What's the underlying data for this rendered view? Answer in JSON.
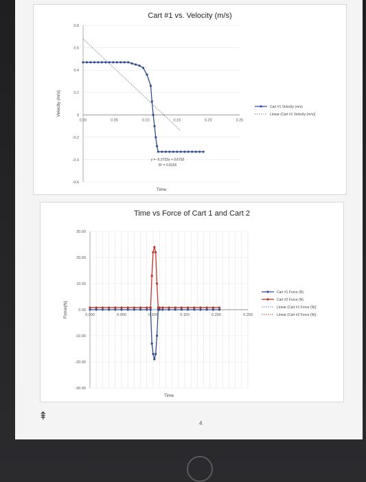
{
  "chart_data": [
    {
      "type": "line",
      "title": "Cart #1 vs. Velocity (m/s)",
      "xlabel": "Time",
      "ylabel": "Velocity (m/s)",
      "xlim": [
        0,
        0.25
      ],
      "ylim": [
        -0.6,
        0.8
      ],
      "x_ticks": [
        "0.00",
        "0.05",
        "0.10",
        "0.15",
        "0.20",
        "0.25"
      ],
      "y_ticks": [
        "0.8",
        "0.6",
        "0.4",
        "0.2",
        "0",
        "-0.2",
        "-0.4",
        "-0.6"
      ],
      "series": [
        {
          "name": "Cart #1 Velocity (m/s)",
          "color": "#2f4e8f",
          "x": [
            0.0,
            0.006,
            0.012,
            0.018,
            0.024,
            0.03,
            0.036,
            0.042,
            0.048,
            0.054,
            0.06,
            0.066,
            0.072,
            0.078,
            0.084,
            0.09,
            0.096,
            0.102,
            0.108,
            0.11,
            0.112,
            0.114,
            0.116,
            0.118,
            0.12,
            0.126,
            0.132,
            0.138,
            0.144,
            0.15,
            0.156,
            0.162,
            0.168,
            0.174,
            0.18,
            0.186,
            0.192
          ],
          "y": [
            0.47,
            0.47,
            0.47,
            0.47,
            0.47,
            0.47,
            0.47,
            0.47,
            0.47,
            0.47,
            0.47,
            0.47,
            0.47,
            0.46,
            0.45,
            0.44,
            0.42,
            0.36,
            0.26,
            0.12,
            0.0,
            -0.1,
            -0.2,
            -0.28,
            -0.33,
            -0.33,
            -0.33,
            -0.33,
            -0.33,
            -0.33,
            -0.33,
            -0.33,
            -0.33,
            -0.33,
            -0.33,
            -0.33,
            -0.33
          ]
        }
      ],
      "trendline": {
        "name": "Linear (Cart #1 Velocity (m/s))",
        "slope": -5.2723,
        "intercept": 0.6792,
        "equation": "y = -5.2723x + 0.6792",
        "r2": "R² = 0.8156"
      },
      "legend": [
        "Cart #1 Velocity (m/s)",
        "Linear (Cart #1 Velocity (m/s))"
      ],
      "legend_position": "right"
    },
    {
      "type": "line",
      "title": "Time vs Force of Cart 1 and Cart 2",
      "xlabel": "Time",
      "ylabel": "Force(N)",
      "xlim": [
        0,
        0.25
      ],
      "ylim": [
        -30,
        30
      ],
      "x_ticks": [
        "0.000",
        "0.050",
        "0.100",
        "0.150",
        "0.200",
        "0.250"
      ],
      "y_ticks": [
        "30.00",
        "20.00",
        "10.00",
        "0.00",
        "-10.00",
        "-20.00",
        "-30.00"
      ],
      "series": [
        {
          "name": "Cart #1 Force (N)",
          "color": "#2f4e8f",
          "x": [
            0.0,
            0.01,
            0.02,
            0.03,
            0.04,
            0.05,
            0.06,
            0.07,
            0.08,
            0.09,
            0.096,
            0.098,
            0.1,
            0.102,
            0.104,
            0.106,
            0.108,
            0.11,
            0.115,
            0.125,
            0.135,
            0.145,
            0.155,
            0.165,
            0.175,
            0.185,
            0.195,
            0.205
          ],
          "y": [
            0,
            0,
            0,
            0,
            0,
            0,
            0,
            0,
            0,
            0,
            0,
            -13,
            -17,
            -19,
            -17,
            -10,
            0,
            0,
            0,
            0,
            0,
            0,
            0,
            0,
            0,
            0,
            0,
            0
          ]
        },
        {
          "name": "Cart #2 Force (N)",
          "color": "#c0312b",
          "x": [
            0.0,
            0.01,
            0.02,
            0.03,
            0.04,
            0.05,
            0.06,
            0.07,
            0.08,
            0.09,
            0.096,
            0.098,
            0.1,
            0.102,
            0.104,
            0.106,
            0.108,
            0.11,
            0.115,
            0.125,
            0.135,
            0.145,
            0.155,
            0.165,
            0.175,
            0.185,
            0.195,
            0.205
          ],
          "y": [
            0.8,
            0.8,
            0.8,
            0.8,
            0.8,
            0.8,
            0.8,
            0.8,
            0.8,
            0.8,
            0.8,
            13,
            22,
            24,
            22,
            10,
            0.8,
            0.8,
            0.8,
            0.8,
            0.8,
            0.8,
            0.8,
            0.8,
            0.8,
            0.8,
            0.8,
            0.8
          ]
        }
      ],
      "legend": [
        "Cart #1 Force (N)",
        "Cart #2 Force (N)",
        "Linear (Cart #1 Force (N))",
        "Linear (Cart #2 Force (N))"
      ],
      "legend_position": "right"
    }
  ],
  "page_number": "4",
  "nav": {
    "back_glyph": "⇞"
  }
}
